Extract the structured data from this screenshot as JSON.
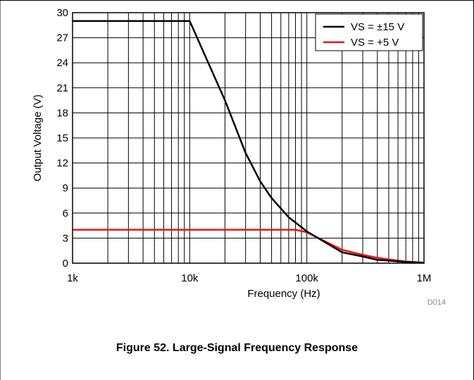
{
  "figure_code": "D014",
  "caption": "Figure 52. Large-Signal Frequency Response",
  "colors": {
    "series_1": "#000000",
    "series_2": "#e8141a",
    "grid": "#000000"
  },
  "chart_data": {
    "type": "line",
    "title": "",
    "xlabel": "Frequency (Hz)",
    "ylabel": "Output Voltage (V)",
    "xscale": "log",
    "xlim": [
      1000,
      1000000
    ],
    "ylim": [
      0,
      30
    ],
    "x_ticks": [
      {
        "value": 1000,
        "label": "1k"
      },
      {
        "value": 10000,
        "label": "10k"
      },
      {
        "value": 100000,
        "label": "100k"
      },
      {
        "value": 1000000,
        "label": "1M"
      }
    ],
    "y_ticks": [
      {
        "value": 0,
        "label": "0"
      },
      {
        "value": 3,
        "label": "3"
      },
      {
        "value": 6,
        "label": "6"
      },
      {
        "value": 9,
        "label": "9"
      },
      {
        "value": 12,
        "label": "12"
      },
      {
        "value": 15,
        "label": "15"
      },
      {
        "value": 18,
        "label": "18"
      },
      {
        "value": 21,
        "label": "21"
      },
      {
        "value": 24,
        "label": "24"
      },
      {
        "value": 27,
        "label": "27"
      },
      {
        "value": 30,
        "label": "30"
      }
    ],
    "grid": true,
    "legend_position": "top-right",
    "series": [
      {
        "name": "VS = ±15 V",
        "x": [
          1000,
          10000,
          20000,
          30000,
          40000,
          50000,
          70000,
          100000,
          200000,
          300000,
          400000,
          500000,
          700000,
          1000000
        ],
        "y": [
          29,
          29,
          19.5,
          13.2,
          9.8,
          7.8,
          5.5,
          3.8,
          1.3,
          0.8,
          0.4,
          0.3,
          0.15,
          0.05
        ]
      },
      {
        "name": "VS = +5 V",
        "x": [
          1000,
          10000,
          20000,
          50000,
          80000,
          100000,
          200000,
          300000,
          400000,
          500000,
          700000,
          1000000
        ],
        "y": [
          4,
          4,
          4,
          4,
          4,
          3.7,
          1.6,
          1.0,
          0.65,
          0.45,
          0.2,
          0.05
        ]
      }
    ]
  }
}
